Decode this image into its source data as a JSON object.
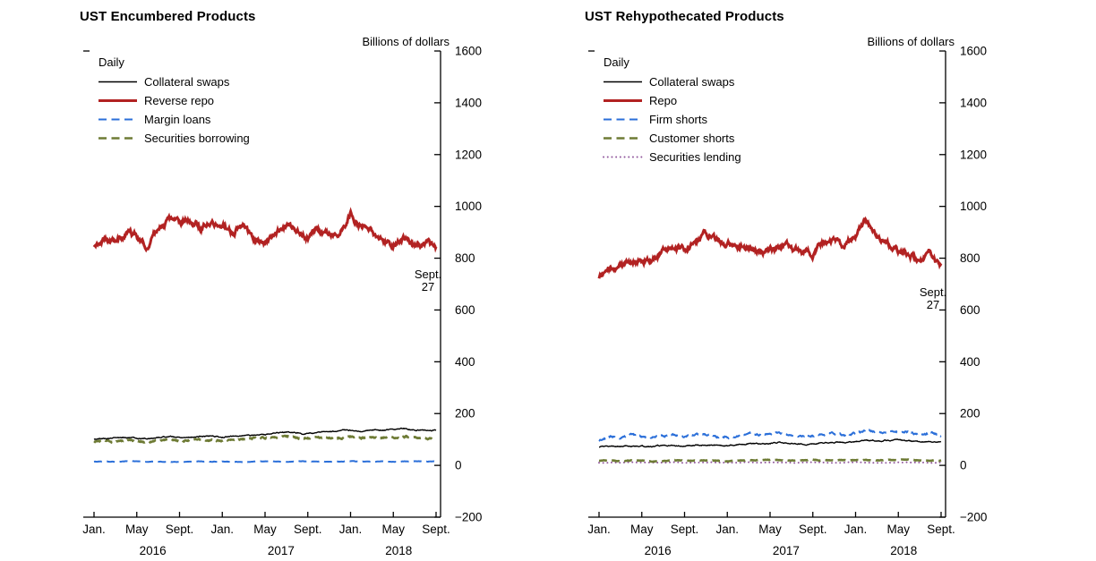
{
  "chart_data": [
    {
      "type": "line",
      "title": "UST Encumbered Products",
      "ylabel": "Billions of dollars",
      "legend_title": "Daily",
      "ylim": [
        -200,
        1600
      ],
      "ytick_interval": 200,
      "xtick_labels": [
        "Jan.",
        "May",
        "Sept.",
        "Jan.",
        "May",
        "Sept.",
        "Jan.",
        "May",
        "Sept."
      ],
      "xtick_month_index": [
        0,
        4,
        8,
        12,
        16,
        20,
        24,
        28,
        32
      ],
      "year_labels": [
        "2016",
        "2017",
        "2018"
      ],
      "year_center_month_index": [
        5.5,
        17.5,
        28.5
      ],
      "end_annotation": {
        "line1": "Sept.",
        "line2": "27"
      },
      "annotation_series_index": 1,
      "grid": false,
      "legend_position": "top-left",
      "series": [
        {
          "name": "Collateral swaps",
          "color": "#000000",
          "style": "solid",
          "width": 1.4,
          "noise": 2.5,
          "monthly_values": [
            100,
            104,
            106,
            108,
            105,
            103,
            108,
            112,
            108,
            110,
            112,
            114,
            108,
            112,
            116,
            118,
            120,
            124,
            128,
            126,
            122,
            128,
            130,
            132,
            136,
            132,
            138,
            136,
            140,
            142,
            138,
            136,
            135
          ]
        },
        {
          "name": "Reverse repo",
          "color": "#b22222",
          "style": "solid",
          "width": 3,
          "noise": 13,
          "monthly_values": [
            845,
            875,
            860,
            895,
            880,
            845,
            915,
            945,
            935,
            950,
            915,
            930,
            940,
            900,
            925,
            880,
            860,
            880,
            930,
            905,
            880,
            915,
            890,
            900,
            970,
            920,
            900,
            870,
            850,
            880,
            845,
            860,
            840
          ]
        },
        {
          "name": "Margin loans",
          "color": "#2b6fd9",
          "style": "dashed",
          "width": 2,
          "noise": 0.9,
          "monthly_values": [
            14,
            15,
            13,
            15,
            16,
            14,
            15,
            13,
            14,
            15,
            16,
            14,
            15,
            14,
            13,
            15,
            16,
            15,
            14,
            15,
            16,
            15,
            14,
            15,
            16,
            15,
            14,
            15,
            14,
            15,
            16,
            15,
            15
          ]
        },
        {
          "name": "Securities borrowing",
          "color": "#6e7b35",
          "style": "dashed",
          "width": 2.6,
          "noise": 3.5,
          "monthly_values": [
            92,
            96,
            90,
            98,
            94,
            88,
            96,
            100,
            95,
            98,
            100,
            96,
            94,
            98,
            102,
            104,
            106,
            108,
            112,
            108,
            104,
            110,
            108,
            106,
            112,
            106,
            110,
            105,
            110,
            112,
            106,
            104,
            105
          ]
        }
      ]
    },
    {
      "type": "line",
      "title": "UST Rehypothecated Products",
      "ylabel": "Billions of dollars",
      "legend_title": "Daily",
      "ylim": [
        -200,
        1600
      ],
      "ytick_interval": 200,
      "xtick_labels": [
        "Jan.",
        "May",
        "Sept.",
        "Jan.",
        "May",
        "Sept.",
        "Jan.",
        "May",
        "Sept."
      ],
      "xtick_month_index": [
        0,
        4,
        8,
        12,
        16,
        20,
        24,
        28,
        32
      ],
      "year_labels": [
        "2016",
        "2017",
        "2018"
      ],
      "year_center_month_index": [
        5.5,
        17.5,
        28.5
      ],
      "end_annotation": {
        "line1": "Sept.",
        "line2": "27"
      },
      "annotation_series_index": 1,
      "grid": false,
      "legend_position": "top-left",
      "series": [
        {
          "name": "Collateral swaps",
          "color": "#000000",
          "style": "solid",
          "width": 1.4,
          "noise": 2.5,
          "monthly_values": [
            70,
            72,
            74,
            73,
            75,
            72,
            76,
            78,
            75,
            78,
            80,
            78,
            76,
            80,
            84,
            82,
            85,
            88,
            86,
            84,
            82,
            88,
            90,
            88,
            92,
            98,
            94,
            96,
            100,
            96,
            92,
            90,
            90
          ]
        },
        {
          "name": "Repo",
          "color": "#b22222",
          "style": "solid",
          "width": 3,
          "noise": 13,
          "monthly_values": [
            725,
            750,
            765,
            780,
            790,
            800,
            820,
            840,
            830,
            855,
            895,
            875,
            860,
            840,
            850,
            820,
            830,
            850,
            840,
            828,
            820,
            855,
            868,
            850,
            895,
            945,
            880,
            850,
            822,
            812,
            792,
            830,
            770
          ]
        },
        {
          "name": "Firm shorts",
          "color": "#2b6fd9",
          "style": "dashed",
          "width": 2,
          "noise": 4.5,
          "monthly_values": [
            98,
            112,
            108,
            115,
            110,
            105,
            112,
            118,
            110,
            115,
            120,
            112,
            108,
            115,
            120,
            118,
            122,
            125,
            118,
            115,
            112,
            120,
            125,
            118,
            125,
            135,
            128,
            130,
            132,
            128,
            120,
            125,
            115
          ]
        },
        {
          "name": "Customer shorts",
          "color": "#6e7b35",
          "style": "dashed",
          "width": 2.6,
          "noise": 1.4,
          "monthly_values": [
            18,
            20,
            16,
            20,
            18,
            15,
            18,
            20,
            17,
            19,
            21,
            18,
            16,
            19,
            21,
            20,
            22,
            20,
            18,
            20,
            22,
            20,
            18,
            20,
            22,
            20,
            19,
            21,
            20,
            22,
            19,
            18,
            19
          ]
        },
        {
          "name": "Securities lending",
          "color": "#8f559b",
          "style": "dotted",
          "width": 1.9,
          "noise": 0.8,
          "monthly_values": [
            10,
            11,
            10,
            12,
            11,
            10,
            11,
            12,
            10,
            11,
            12,
            11,
            10,
            11,
            12,
            11,
            12,
            11,
            10,
            11,
            12,
            11,
            10,
            11,
            12,
            11,
            10,
            11,
            11,
            12,
            11,
            10,
            11
          ]
        }
      ]
    }
  ]
}
